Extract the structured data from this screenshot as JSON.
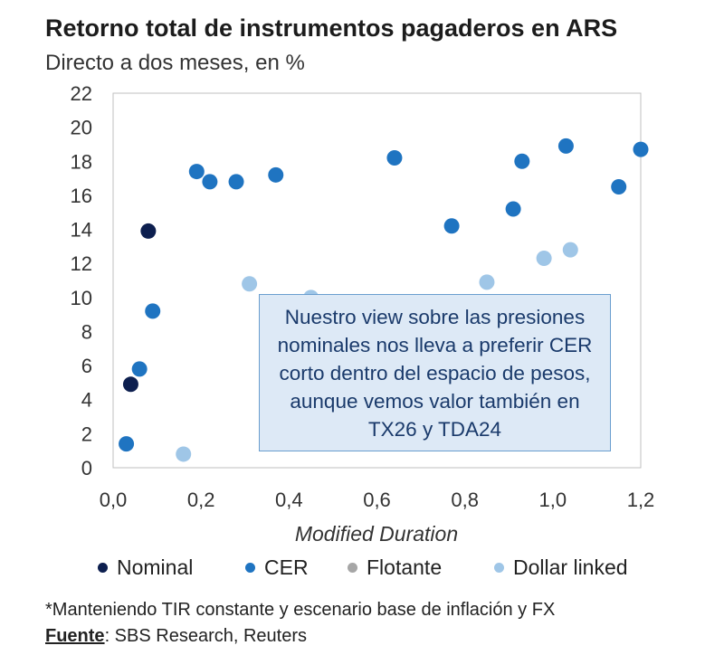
{
  "header": {
    "title": "Retorno total de instrumentos pagaderos en ARS",
    "subtitle": "Directo a dos meses, en %"
  },
  "annotation": {
    "text": "Nuestro view sobre las presiones nominales nos lleva a preferir CER corto dentro del espacio de pesos, aunque vemos valor también en TX26 y TDA24"
  },
  "legend": {
    "items": [
      {
        "label": "Nominal",
        "color": "#0d1f4f"
      },
      {
        "label": "CER",
        "color": "#1f74c1"
      },
      {
        "label": "Flotante",
        "color": "#a6a6a6"
      },
      {
        "label": "Dollar linked",
        "color": "#9fc6e7"
      }
    ]
  },
  "footer": {
    "note": "*Manteniendo TIR constante y escenario base de inflación y FX",
    "source_label": "Fuente",
    "source_text": ": SBS Research, Reuters"
  },
  "chart_data": {
    "type": "scatter",
    "xlabel": "Modified Duration",
    "ylabel": "",
    "xlim": [
      0,
      1.2
    ],
    "ylim": [
      0,
      22
    ],
    "xticks": [
      "0,0",
      "0,2",
      "0,4",
      "0,6",
      "0,8",
      "1,0",
      "1,2"
    ],
    "xtick_values": [
      0,
      0.2,
      0.4,
      0.6,
      0.8,
      1.0,
      1.2
    ],
    "yticks": [
      "0",
      "2",
      "4",
      "6",
      "8",
      "10",
      "12",
      "14",
      "16",
      "18",
      "20",
      "22"
    ],
    "ytick_values": [
      0,
      2,
      4,
      6,
      8,
      10,
      12,
      14,
      16,
      18,
      20,
      22
    ],
    "grid": false,
    "legend_position": "bottom",
    "series": [
      {
        "name": "Nominal",
        "color": "#0d1f4f",
        "points": [
          [
            0.08,
            13.9
          ],
          [
            0.04,
            4.9
          ]
        ]
      },
      {
        "name": "CER",
        "color": "#1f74c1",
        "points": [
          [
            0.03,
            1.4
          ],
          [
            0.06,
            5.8
          ],
          [
            0.09,
            9.2
          ],
          [
            0.19,
            17.4
          ],
          [
            0.22,
            16.8
          ],
          [
            0.28,
            16.8
          ],
          [
            0.37,
            17.2
          ],
          [
            0.64,
            18.2
          ],
          [
            0.77,
            14.2
          ],
          [
            0.91,
            15.2
          ],
          [
            0.93,
            18.0
          ],
          [
            1.03,
            18.9
          ],
          [
            1.15,
            16.5
          ],
          [
            1.2,
            18.7
          ]
        ]
      },
      {
        "name": "Flotante",
        "color": "#a6a6a6",
        "points": []
      },
      {
        "name": "Dollar linked",
        "color": "#9fc6e7",
        "points": [
          [
            0.16,
            0.8
          ],
          [
            0.31,
            10.8
          ],
          [
            0.45,
            10.0
          ],
          [
            0.85,
            10.9
          ],
          [
            0.98,
            12.3
          ],
          [
            1.04,
            12.8
          ]
        ]
      }
    ]
  }
}
